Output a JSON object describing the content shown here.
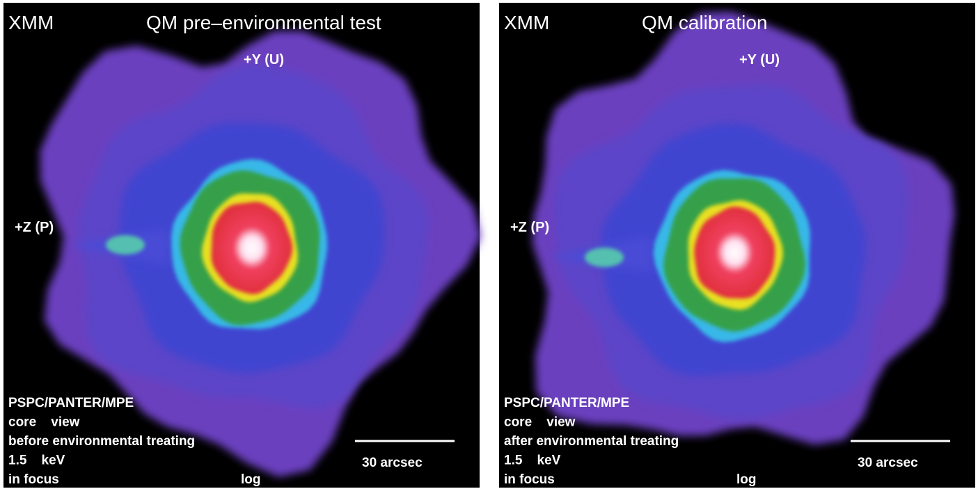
{
  "panels": [
    {
      "label": "XMM",
      "title": "QM pre–environmental test",
      "y_axis": "+Y (U)",
      "z_axis": "+Z (P)",
      "notes": [
        "PSPC/PANTER/MPE",
        "core    view",
        "before environmental treating",
        "1.5    keV",
        "in focus"
      ],
      "scale": "30 arcsec",
      "stretch": "log"
    },
    {
      "label": "XMM",
      "title": "QM calibration",
      "y_axis": "+Y (U)",
      "z_axis": "+Z (P)",
      "notes": [
        "PSPC/PANTER/MPE",
        "core    view",
        "after environmental treating",
        "1.5    keV",
        "in focus"
      ],
      "scale": "30 arcsec",
      "stretch": "log"
    }
  ]
}
